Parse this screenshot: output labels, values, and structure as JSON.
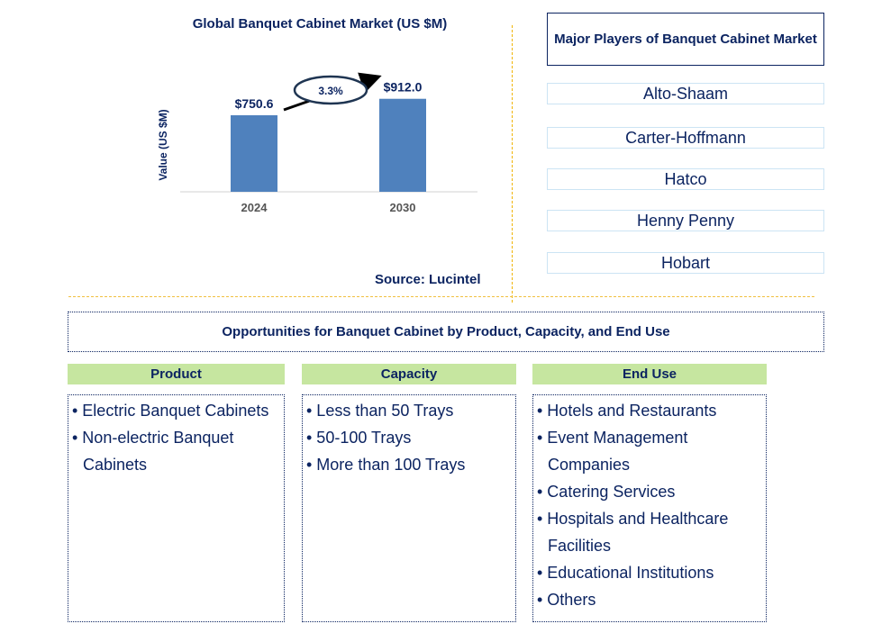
{
  "chart_data": {
    "type": "bar",
    "title": "Global Banquet Cabinet Market (US $M)",
    "ylabel": "Value (US $M)",
    "categories": [
      "2024",
      "2030"
    ],
    "values": [
      750.6,
      912.0
    ],
    "data_labels": [
      "$750.6",
      "$912.0"
    ],
    "cagr_label": "3.3%",
    "bar_color": "#4f81bd",
    "source": "Source: Lucintel"
  },
  "players": {
    "title": "Major Players of Banquet Cabinet Market",
    "items": [
      "Alto-Shaam",
      "Carter-Hoffmann",
      "Hatco",
      "Henny Penny",
      "Hobart"
    ]
  },
  "opportunities": {
    "title": "Opportunities for Banquet Cabinet by Product, Capacity, and End Use",
    "columns": [
      {
        "header": "Product",
        "items": [
          "• Electric Banquet Cabinets",
          "• Non-electric Banquet Cabinets"
        ]
      },
      {
        "header": "Capacity",
        "items": [
          "• Less than 50 Trays",
          "• 50-100 Trays",
          "• More than 100 Trays"
        ]
      },
      {
        "header": "End Use",
        "items": [
          "• Hotels and Restaurants",
          "• Event Management Companies",
          "• Catering Services",
          "• Hospitals and Healthcare Facilities",
          "• Educational Institutions",
          "• Others"
        ]
      }
    ]
  }
}
